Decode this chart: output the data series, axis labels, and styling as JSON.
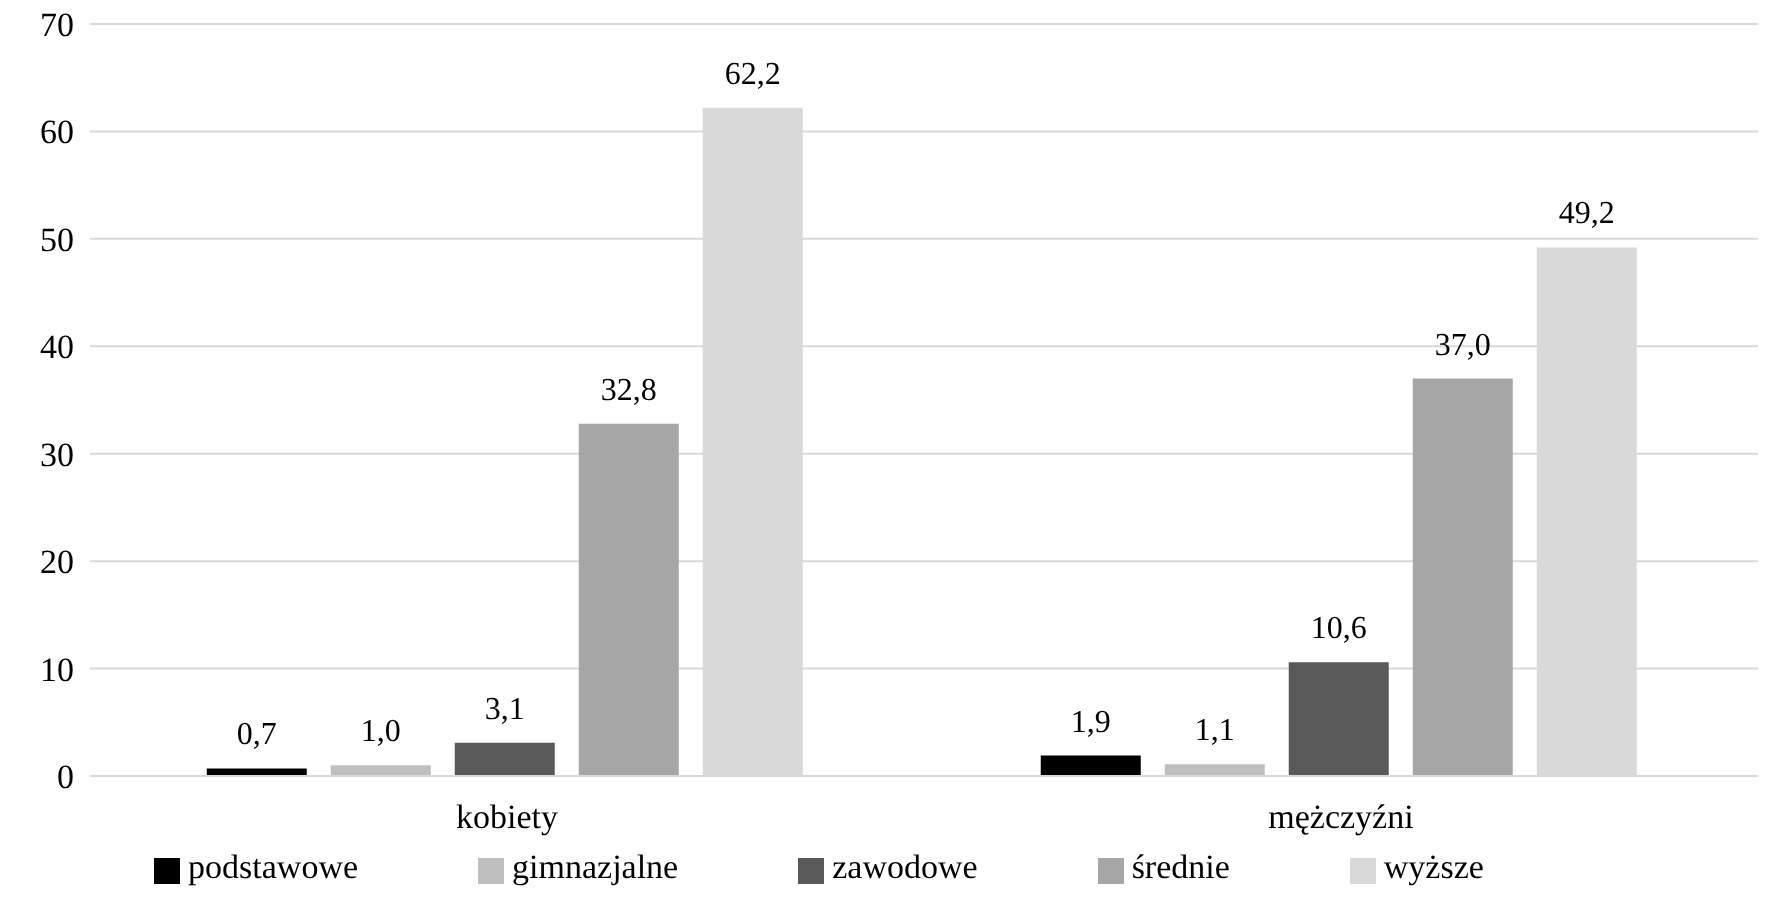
{
  "chart_data": {
    "type": "bar",
    "categories": [
      "kobiety",
      "mężczyźni"
    ],
    "series": [
      {
        "name": "podstawowe",
        "color": "#000000",
        "values": [
          0.7,
          1.9
        ],
        "value_labels": [
          "0,7",
          "1,9"
        ]
      },
      {
        "name": "gimnazjalne",
        "color": "#bfbfbf",
        "values": [
          1.0,
          1.1
        ],
        "value_labels": [
          "1,0",
          "1,1"
        ]
      },
      {
        "name": "zawodowe",
        "color": "#595959",
        "values": [
          3.1,
          10.6
        ],
        "value_labels": [
          "3,1",
          "10,6"
        ]
      },
      {
        "name": "średnie",
        "color": "#a6a6a6",
        "values": [
          32.8,
          37.0
        ],
        "value_labels": [
          "32,8",
          "37,0"
        ]
      },
      {
        "name": "wyższe",
        "color": "#d9d9d9",
        "values": [
          62.2,
          49.2
        ],
        "value_labels": [
          "62,2",
          "49,2"
        ]
      }
    ],
    "ylim": [
      0,
      70
    ],
    "yticks": [
      0,
      10,
      20,
      30,
      40,
      50,
      60,
      70
    ],
    "grid": "y",
    "legend": "bottom"
  }
}
